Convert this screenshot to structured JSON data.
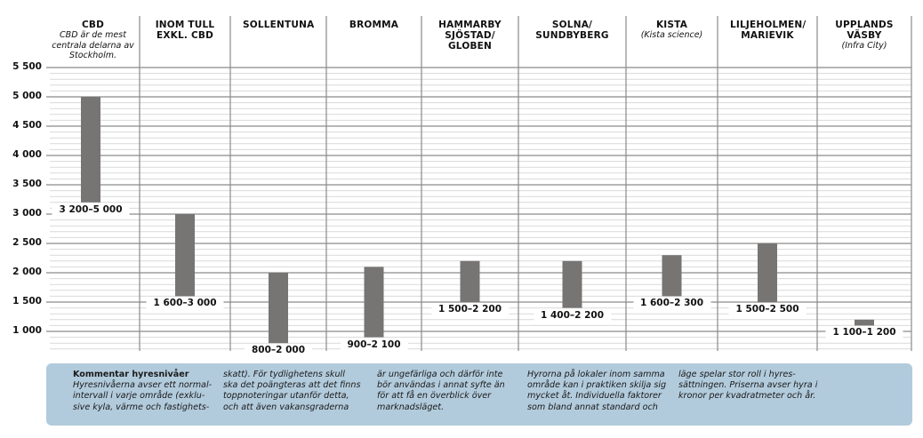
{
  "chart_data": {
    "type": "range-bar",
    "title": "",
    "ylabel": "",
    "xlabel": "",
    "ylim": [
      600,
      5500
    ],
    "yticks": [
      1000,
      1500,
      2000,
      2500,
      3000,
      3500,
      4000,
      4500,
      5000,
      5500
    ],
    "ytick_labels": [
      "1 000",
      "1 500",
      "2 000",
      "2 500",
      "3 000",
      "3 500",
      "4 000",
      "4 500",
      "5 000",
      "5 500"
    ],
    "minor_grid_step": 100,
    "grid": true,
    "categories": [
      {
        "title": "CBD",
        "subtitle": "CBD är de mest centrala delarna av Stockholm.",
        "low": 3200,
        "high": 5000,
        "label": "3 200–5 000"
      },
      {
        "title": "INOM TULL EXKL. CBD",
        "subtitle": "",
        "low": 1600,
        "high": 3000,
        "label": "1 600–3 000"
      },
      {
        "title": "SOLLENTUNA",
        "subtitle": "",
        "low": 800,
        "high": 2000,
        "label": "800–2 000"
      },
      {
        "title": "BROMMA",
        "subtitle": "",
        "low": 900,
        "high": 2100,
        "label": "900–2 100"
      },
      {
        "title": "HAMMARBY SJÖSTAD/ GLOBEN",
        "subtitle": "",
        "low": 1500,
        "high": 2200,
        "label": "1 500–2 200"
      },
      {
        "title": "SOLNA/ SUNDBYBERG",
        "subtitle": "",
        "low": 1400,
        "high": 2200,
        "label": "1 400–2 200"
      },
      {
        "title": "KISTA",
        "subtitle": "(Kista science)",
        "low": 1600,
        "high": 2300,
        "label": "1 600–2 300"
      },
      {
        "title": "LILJEHOLMEN/ MARIEVIK",
        "subtitle": "",
        "low": 1500,
        "high": 2500,
        "label": "1 500–2 500"
      },
      {
        "title": "UPPLANDS VÄSBY",
        "subtitle": "(Infra City)",
        "low": 1100,
        "high": 1200,
        "label": "1 100–1 200"
      }
    ],
    "colors": {
      "bar": "#777574",
      "major_grid": "#6e6e6e",
      "minor_grid": "#d9d9d9",
      "divider": "#8a8a8a"
    }
  },
  "note": {
    "heading": "Kommentar hyresnivåer",
    "columns": [
      [
        "Hyresnivåerna avser ett normal-",
        "intervall i varje område (exklu-",
        "sive kyla, värme och fastighets-"
      ],
      [
        "skatt). För tydlighetens skull",
        "ska det poängteras att det finns",
        "toppnoteringar utanför detta,",
        "och att även vakansgraderna"
      ],
      [
        "är ungefärliga och därför inte",
        "bör användas i annat syfte än",
        "för att få en överblick över",
        "marknadsläget."
      ],
      [
        "Hyrorna på lokaler inom samma",
        "område kan i praktiken skilja sig",
        "mycket åt. Individuella faktorer",
        "som bland annat standard och"
      ],
      [
        "läge spelar stor roll i hyres-",
        "sättningen. Priserna avser hyra i",
        "kronor per kvadratmeter och år."
      ]
    ],
    "background": "#b2cbdc"
  }
}
